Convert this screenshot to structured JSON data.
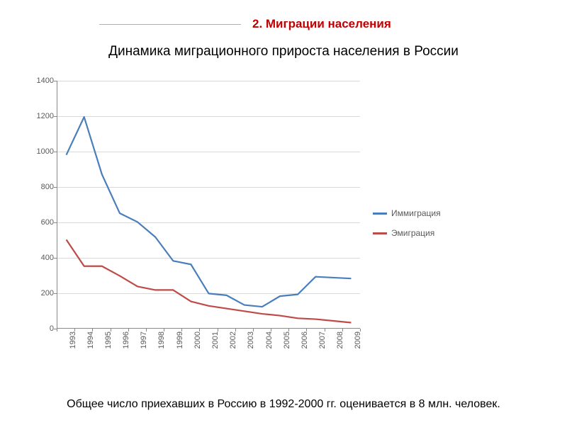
{
  "header": {
    "section_title": "2. Миграции населения",
    "subtitle": "Динамика миграционного прироста населения в России",
    "caption": "Общее число приехавших в Россию в 1992-2000 гг. оценивается в 8 млн. человек."
  },
  "chart": {
    "type": "line",
    "background_color": "#ffffff",
    "grid_color": "#d9d9d9",
    "axis_color": "#888888",
    "tick_label_color": "#595959",
    "tick_fontsize": 11,
    "ylim": [
      0,
      1400
    ],
    "ytick_step": 200,
    "yticks": [
      0,
      200,
      400,
      600,
      800,
      1000,
      1200,
      1400
    ],
    "x_categories": [
      "1993",
      "1994",
      "1995",
      "1996",
      "1997",
      "1998",
      "1999",
      "2000",
      "2001",
      "2002",
      "2003",
      "2004",
      "2005",
      "2006",
      "2007",
      "2008",
      "2009"
    ],
    "series": [
      {
        "name": "Иммиграция",
        "color": "#4a7ebb",
        "line_width": 2.2,
        "values": [
          980,
          1195,
          870,
          650,
          600,
          515,
          380,
          360,
          195,
          185,
          130,
          120,
          180,
          190,
          290,
          285,
          280
        ]
      },
      {
        "name": "Эмиграция",
        "color": "#be4b48",
        "line_width": 2.2,
        "values": [
          500,
          350,
          350,
          295,
          235,
          215,
          215,
          150,
          125,
          110,
          95,
          80,
          70,
          55,
          50,
          40,
          30
        ]
      }
    ]
  }
}
